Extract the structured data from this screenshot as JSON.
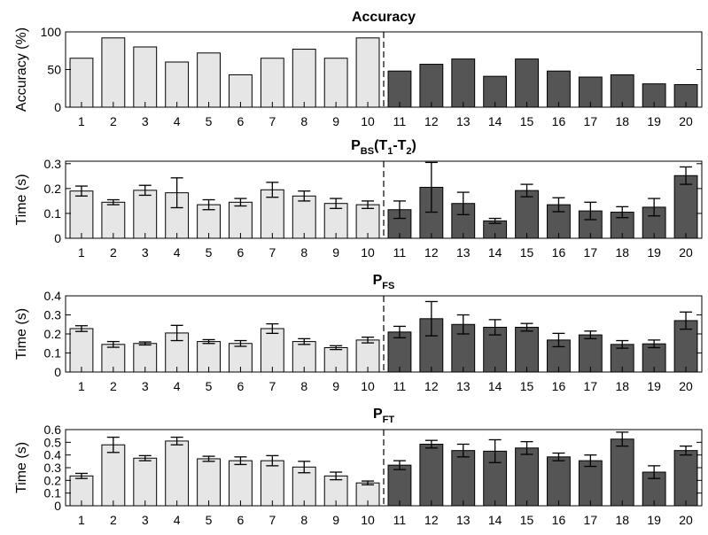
{
  "chart_data": [
    {
      "type": "bar",
      "title": "Accuracy",
      "title_main": "Accuracy",
      "title_sub": "",
      "title_rest": "",
      "xlabel": "",
      "ylabel": "Accuracy (%)",
      "ylim": [
        0,
        100
      ],
      "yticks": [
        "0",
        "50",
        "100"
      ],
      "yticks_values": [
        0,
        50,
        100
      ],
      "categories": [
        "1",
        "2",
        "3",
        "4",
        "5",
        "6",
        "7",
        "8",
        "9",
        "10",
        "11",
        "12",
        "13",
        "14",
        "15",
        "16",
        "17",
        "18",
        "19",
        "20"
      ],
      "values": [
        65,
        92,
        80,
        60,
        72,
        43,
        65,
        77,
        65,
        92,
        48,
        57,
        64,
        41,
        64,
        48,
        40,
        43,
        31,
        30
      ],
      "errors": null,
      "bar_colors": {
        "1-10": "#e6e6e6",
        "11-20": "#555555"
      },
      "divider_after_category": "10"
    },
    {
      "type": "bar",
      "title": "PBS(T1-T2)",
      "title_main": "P",
      "title_sub": "BS",
      "title_rest": "(T",
      "title_sub2": "1",
      "title_rest2": "-T",
      "title_sub3": "2",
      "title_rest3": ")",
      "xlabel": "",
      "ylabel": "Time (s)",
      "ylim": [
        0,
        0.31
      ],
      "yticks": [
        "0",
        "0.1",
        "0.2",
        "0.3"
      ],
      "yticks_values": [
        0,
        0.1,
        0.2,
        0.3
      ],
      "categories": [
        "1",
        "2",
        "3",
        "4",
        "5",
        "6",
        "7",
        "8",
        "9",
        "10",
        "11",
        "12",
        "13",
        "14",
        "15",
        "16",
        "17",
        "18",
        "19",
        "20"
      ],
      "values": [
        0.19,
        0.145,
        0.193,
        0.183,
        0.135,
        0.145,
        0.195,
        0.17,
        0.14,
        0.135,
        0.115,
        0.205,
        0.14,
        0.07,
        0.192,
        0.135,
        0.11,
        0.105,
        0.125,
        0.252
      ],
      "errors": [
        0.02,
        0.01,
        0.02,
        0.06,
        0.02,
        0.015,
        0.03,
        0.02,
        0.02,
        0.015,
        0.035,
        0.1,
        0.045,
        0.01,
        0.025,
        0.028,
        0.035,
        0.022,
        0.035,
        0.035
      ],
      "bar_colors": {
        "1-10": "#e6e6e6",
        "11-20": "#555555"
      },
      "divider_after_category": "10"
    },
    {
      "type": "bar",
      "title": "PFS",
      "title_main": "P",
      "title_sub": "FS",
      "title_rest": "",
      "xlabel": "",
      "ylabel": "Time (s)",
      "ylim": [
        0,
        0.4
      ],
      "yticks": [
        "0",
        "0.1",
        "0.2",
        "0.3",
        "0.4"
      ],
      "yticks_values": [
        0,
        0.1,
        0.2,
        0.3,
        0.4
      ],
      "categories": [
        "1",
        "2",
        "3",
        "4",
        "5",
        "6",
        "7",
        "8",
        "9",
        "10",
        "11",
        "12",
        "13",
        "14",
        "15",
        "16",
        "17",
        "18",
        "19",
        "20"
      ],
      "values": [
        0.228,
        0.145,
        0.15,
        0.205,
        0.16,
        0.15,
        0.228,
        0.16,
        0.128,
        0.168,
        0.21,
        0.28,
        0.25,
        0.235,
        0.235,
        0.168,
        0.195,
        0.145,
        0.148,
        0.27
      ],
      "errors": [
        0.015,
        0.015,
        0.008,
        0.04,
        0.01,
        0.015,
        0.025,
        0.015,
        0.01,
        0.015,
        0.03,
        0.09,
        0.05,
        0.04,
        0.02,
        0.035,
        0.02,
        0.02,
        0.02,
        0.045
      ],
      "bar_colors": {
        "1-10": "#e6e6e6",
        "11-20": "#555555"
      },
      "divider_after_category": "10"
    },
    {
      "type": "bar",
      "title": "PFT",
      "title_main": "P",
      "title_sub": "FT",
      "title_rest": "",
      "xlabel": "",
      "ylabel": "Time (s)",
      "ylim": [
        0,
        0.6
      ],
      "yticks": [
        "0",
        "0.1",
        "0.2",
        "0.3",
        "0.4",
        "0.5",
        "0.6"
      ],
      "yticks_values": [
        0,
        0.1,
        0.2,
        0.3,
        0.4,
        0.5,
        0.6
      ],
      "categories": [
        "1",
        "2",
        "3",
        "4",
        "5",
        "6",
        "7",
        "8",
        "9",
        "10",
        "11",
        "12",
        "13",
        "14",
        "15",
        "16",
        "17",
        "18",
        "19",
        "20"
      ],
      "values": [
        0.235,
        0.48,
        0.375,
        0.51,
        0.37,
        0.355,
        0.355,
        0.305,
        0.235,
        0.18,
        0.32,
        0.485,
        0.435,
        0.43,
        0.455,
        0.385,
        0.355,
        0.525,
        0.265,
        0.435
      ],
      "errors": [
        0.02,
        0.06,
        0.02,
        0.03,
        0.02,
        0.03,
        0.04,
        0.045,
        0.03,
        0.015,
        0.035,
        0.03,
        0.05,
        0.09,
        0.05,
        0.03,
        0.045,
        0.055,
        0.05,
        0.035
      ],
      "bar_colors": {
        "1-10": "#e6e6e6",
        "11-20": "#555555"
      },
      "divider_after_category": "10"
    }
  ]
}
